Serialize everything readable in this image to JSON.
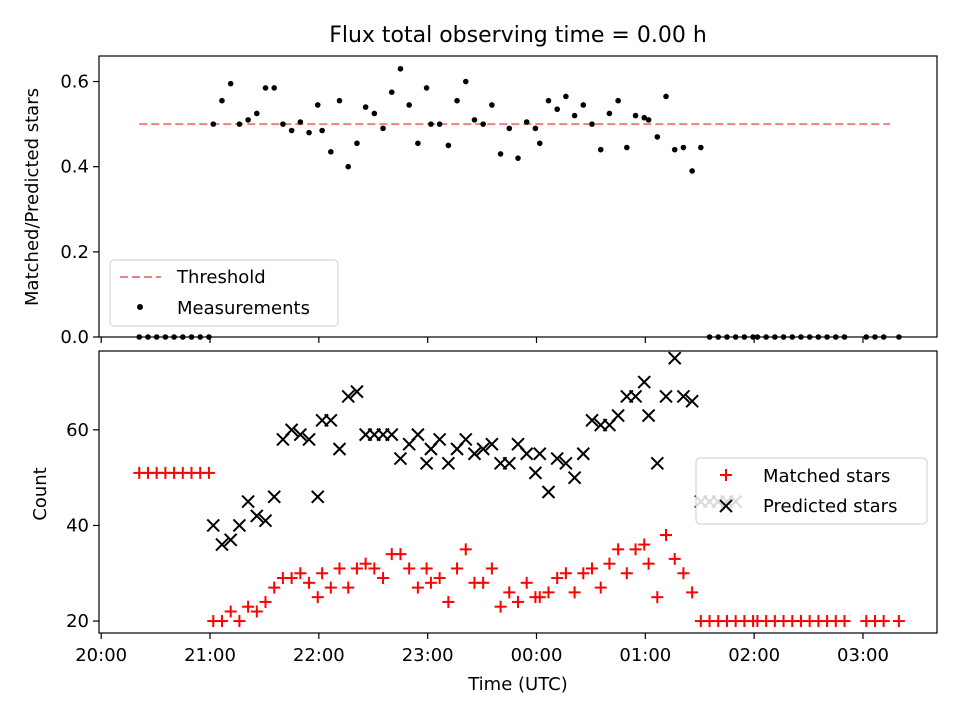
{
  "chart_data": [
    {
      "type": "scatter",
      "title": "Flux total observing time = 0.00 h",
      "ylabel": "Matched/Predicted stars",
      "ylim": [
        0,
        0.66
      ],
      "yticks": [
        "0.0",
        "0.2",
        "0.4",
        "0.6"
      ],
      "threshold": 0.5,
      "threshold_range": [
        20.35,
        27.25
      ],
      "legend": {
        "placement": "lower-left",
        "entries": [
          "Threshold",
          "Measurements"
        ]
      },
      "colors": {
        "threshold": "#f08080",
        "measurements": "#000000"
      },
      "series": [
        {
          "name": "Measurements",
          "x": [
            20.35,
            20.43,
            20.51,
            20.59,
            20.67,
            20.75,
            20.83,
            20.91,
            20.99,
            21.03,
            21.11,
            21.19,
            21.27,
            21.35,
            21.43,
            21.51,
            21.59,
            21.67,
            21.75,
            21.83,
            21.91,
            21.99,
            22.03,
            22.11,
            22.19,
            22.27,
            22.35,
            22.43,
            22.51,
            22.59,
            22.67,
            22.75,
            22.83,
            22.91,
            22.99,
            23.03,
            23.11,
            23.19,
            23.27,
            23.35,
            23.43,
            23.51,
            23.59,
            23.67,
            23.75,
            23.83,
            23.91,
            23.99,
            24.03,
            24.11,
            24.19,
            24.27,
            24.35,
            24.43,
            24.51,
            24.59,
            24.67,
            24.75,
            24.83,
            24.91,
            24.99,
            25.03,
            25.11,
            25.19,
            25.27,
            25.35,
            25.43,
            25.51,
            25.59,
            25.67,
            25.75,
            25.83,
            25.91,
            25.99,
            26.03,
            26.11,
            26.19,
            26.27,
            26.35,
            26.43,
            26.51,
            26.59,
            26.67,
            26.75,
            26.83,
            27.03,
            27.11,
            27.19,
            27.33
          ],
          "y": [
            0,
            0,
            0,
            0,
            0,
            0,
            0,
            0,
            0,
            0.5,
            0.555,
            0.595,
            0.5,
            0.51,
            0.525,
            0.585,
            0.585,
            0.5,
            0.485,
            0.505,
            0.48,
            0.545,
            0.485,
            0.435,
            0.555,
            0.4,
            0.455,
            0.54,
            0.525,
            0.49,
            0.575,
            0.63,
            0.545,
            0.455,
            0.585,
            0.5,
            0.5,
            0.45,
            0.555,
            0.6,
            0.51,
            0.5,
            0.545,
            0.43,
            0.49,
            0.42,
            0.505,
            0.49,
            0.455,
            0.555,
            0.535,
            0.565,
            0.52,
            0.545,
            0.5,
            0.44,
            0.525,
            0.555,
            0.445,
            0.52,
            0.515,
            0.51,
            0.47,
            0.565,
            0.44,
            0.445,
            0.39,
            0.445,
            0,
            0,
            0,
            0,
            0,
            0,
            0,
            0,
            0,
            0,
            0,
            0,
            0,
            0,
            0,
            0,
            0,
            0,
            0,
            0,
            0
          ]
        }
      ]
    },
    {
      "type": "scatter",
      "xlabel": "Time (UTC)",
      "ylabel": "Count",
      "xlim": [
        19.98,
        27.68
      ],
      "xticks": [
        {
          "x": 20,
          "label": "20:00"
        },
        {
          "x": 21,
          "label": "21:00"
        },
        {
          "x": 22,
          "label": "22:00"
        },
        {
          "x": 23,
          "label": "23:00"
        },
        {
          "x": 24,
          "label": "00:00"
        },
        {
          "x": 25,
          "label": "01:00"
        },
        {
          "x": 26,
          "label": "02:00"
        },
        {
          "x": 27,
          "label": "03:00"
        }
      ],
      "ylim": [
        17.5,
        76.5
      ],
      "yticks": [
        "20",
        "40",
        "60"
      ],
      "legend": {
        "placement": "center-right",
        "entries": [
          "Matched stars",
          "Predicted stars"
        ]
      },
      "colors": {
        "matched": "#ff0000",
        "predicted": "#000000"
      },
      "series": [
        {
          "name": "Matched stars",
          "marker": "plus",
          "x": [
            20.35,
            20.43,
            20.51,
            20.59,
            20.67,
            20.75,
            20.83,
            20.91,
            20.99,
            21.03,
            21.11,
            21.19,
            21.27,
            21.35,
            21.43,
            21.51,
            21.59,
            21.67,
            21.75,
            21.83,
            21.91,
            21.99,
            22.03,
            22.11,
            22.19,
            22.27,
            22.35,
            22.43,
            22.51,
            22.59,
            22.67,
            22.75,
            22.83,
            22.91,
            22.99,
            23.03,
            23.11,
            23.19,
            23.27,
            23.35,
            23.43,
            23.51,
            23.59,
            23.67,
            23.75,
            23.83,
            23.91,
            23.99,
            24.03,
            24.11,
            24.19,
            24.27,
            24.35,
            24.43,
            24.51,
            24.59,
            24.67,
            24.75,
            24.83,
            24.91,
            24.99,
            25.03,
            25.11,
            25.19,
            25.27,
            25.35,
            25.43,
            25.51,
            25.59,
            25.67,
            25.75,
            25.83,
            25.91,
            25.99,
            26.03,
            26.11,
            26.19,
            26.27,
            26.35,
            26.43,
            26.51,
            26.59,
            26.67,
            26.75,
            26.83,
            27.03,
            27.11,
            27.19,
            27.33
          ],
          "y": [
            51,
            51,
            51,
            51,
            51,
            51,
            51,
            51,
            51,
            20,
            20,
            22,
            20,
            23,
            22,
            24,
            27,
            29,
            29,
            30,
            28,
            25,
            30,
            27,
            31,
            27,
            31,
            32,
            31,
            29,
            34,
            34,
            31,
            27,
            31,
            28,
            29,
            24,
            31,
            35,
            28,
            28,
            31,
            23,
            26,
            24,
            28,
            25,
            25,
            26,
            29,
            30,
            26,
            30,
            31,
            27,
            32,
            35,
            30,
            35,
            36,
            32,
            25,
            38,
            33,
            30,
            26,
            20,
            20,
            20,
            20,
            20,
            20,
            20,
            20,
            20,
            20,
            20,
            20,
            20,
            20,
            20,
            20,
            20,
            20,
            20,
            20,
            20,
            20
          ]
        },
        {
          "name": "Predicted stars",
          "marker": "x",
          "x": [
            21.03,
            21.11,
            21.19,
            21.27,
            21.35,
            21.43,
            21.51,
            21.59,
            21.67,
            21.75,
            21.83,
            21.91,
            21.99,
            22.03,
            22.11,
            22.19,
            22.27,
            22.35,
            22.43,
            22.51,
            22.59,
            22.67,
            22.75,
            22.83,
            22.91,
            22.99,
            23.03,
            23.11,
            23.19,
            23.27,
            23.35,
            23.43,
            23.51,
            23.59,
            23.67,
            23.75,
            23.83,
            23.91,
            23.99,
            24.03,
            24.11,
            24.19,
            24.27,
            24.35,
            24.43,
            24.51,
            24.59,
            24.67,
            24.75,
            24.83,
            24.91,
            24.99,
            25.03,
            25.11,
            25.19,
            25.27,
            25.35,
            25.43,
            25.51,
            25.59,
            25.67,
            25.75,
            25.83
          ],
          "y": [
            40,
            36,
            37,
            40,
            45,
            42,
            41,
            46,
            58,
            60,
            59,
            58,
            46,
            62,
            62,
            56,
            67,
            68,
            59,
            59,
            59,
            59,
            54,
            57,
            59,
            53,
            56,
            58,
            53,
            56,
            58,
            55,
            56,
            57,
            53,
            53,
            57,
            55,
            51,
            55,
            47,
            54,
            53,
            50,
            55,
            62,
            61,
            61,
            63,
            67,
            67,
            70,
            63,
            53,
            67,
            75,
            67,
            66,
            45,
            45,
            45,
            45,
            45
          ]
        }
      ]
    }
  ]
}
